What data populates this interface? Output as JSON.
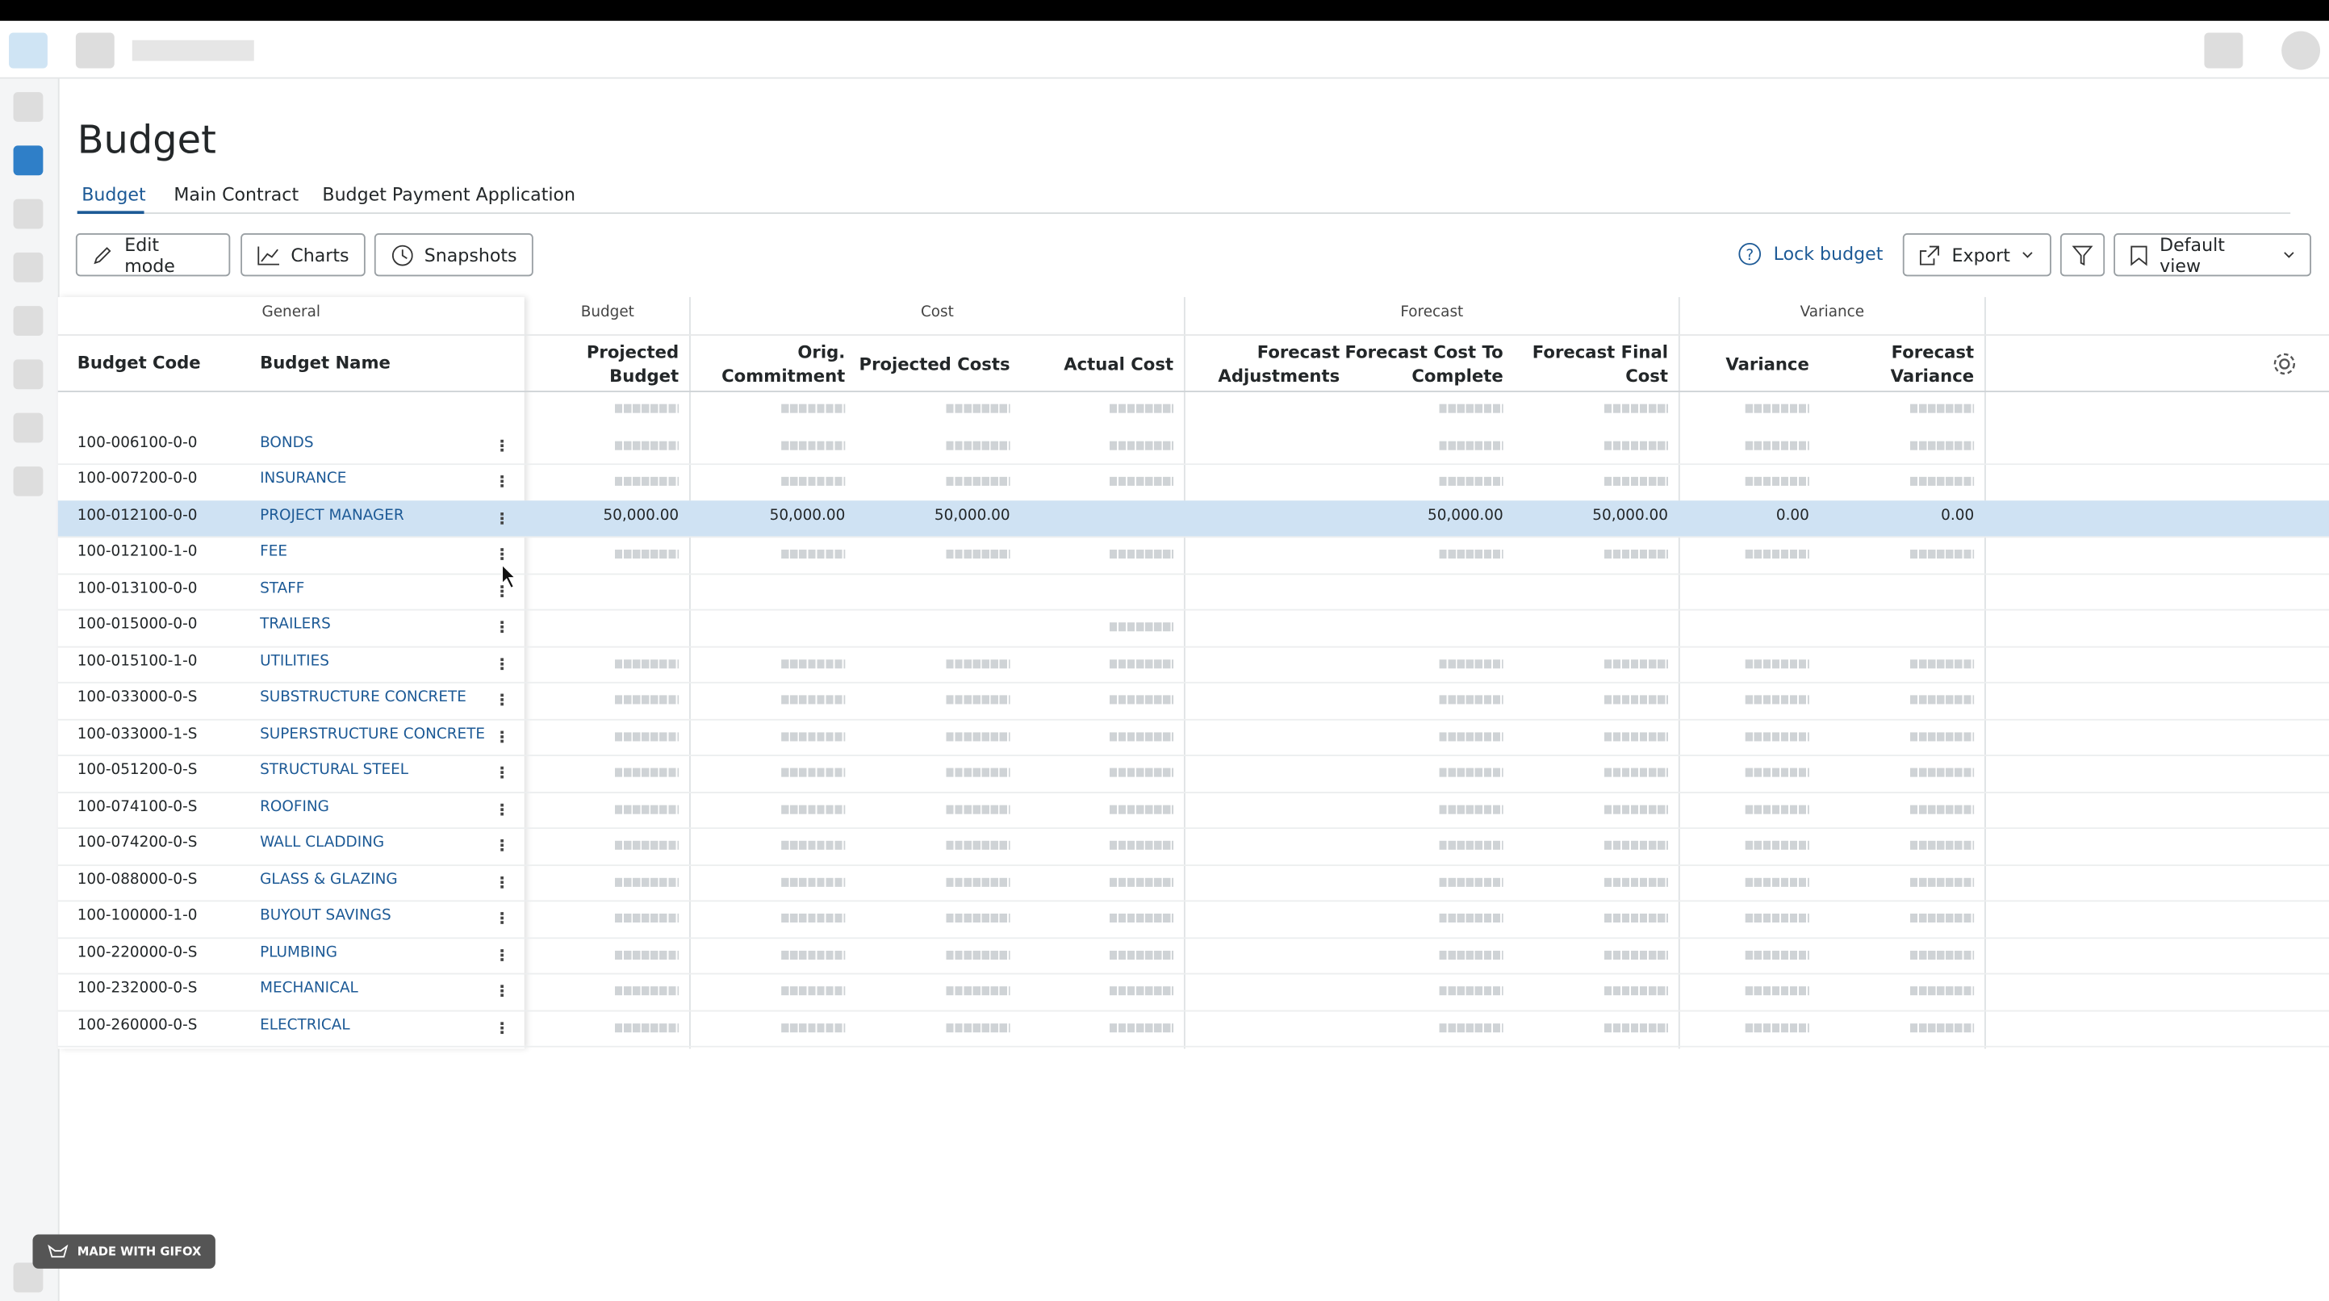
{
  "header": {
    "title": "Budget",
    "tabs": [
      "Budget",
      "Main Contract",
      "Budget Payment Application"
    ]
  },
  "toolbar": {
    "left": [
      "Edit mode",
      "Charts",
      "Snapshots"
    ],
    "lock": "Lock budget",
    "export": "Export",
    "view": "Default view"
  },
  "table": {
    "groups": [
      "General",
      "Budget",
      "Cost",
      "Forecast",
      "Variance"
    ],
    "columns": [
      "Budget Code",
      "Budget Name",
      "Projected Budget",
      "Orig. Commitment",
      "Projected Costs",
      "Actual Cost",
      "Forecast Adjustments",
      "Forecast Cost To Complete",
      "Forecast Final Cost",
      "Variance",
      "Forecast Variance"
    ],
    "rows": [
      {
        "code": "100-006100-0-0",
        "name": "BONDS"
      },
      {
        "code": "100-007200-0-0",
        "name": "INSURANCE"
      },
      {
        "code": "100-012100-0-0",
        "name": "PROJECT MANAGER",
        "values": [
          "50,000.00",
          "50,000.00",
          "50,000.00",
          null,
          null,
          "50,000.00",
          "50,000.00",
          "0.00",
          "0.00"
        ]
      },
      {
        "code": "100-012100-1-0",
        "name": "FEE"
      },
      {
        "code": "100-013100-0-0",
        "name": "STAFF"
      },
      {
        "code": "100-015000-0-0",
        "name": "TRAILERS"
      },
      {
        "code": "100-015100-1-0",
        "name": "UTILITIES"
      },
      {
        "code": "100-033000-0-S",
        "name": "SUBSTRUCTURE CONCRETE"
      },
      {
        "code": "100-033000-1-S",
        "name": "SUPERSTRUCTURE CONCRETE"
      },
      {
        "code": "100-051200-0-S",
        "name": "STRUCTURAL STEEL"
      },
      {
        "code": "100-074100-0-S",
        "name": "ROOFING"
      },
      {
        "code": "100-074200-0-S",
        "name": "WALL CLADDING"
      },
      {
        "code": "100-088000-0-S",
        "name": "GLASS & GLAZING"
      },
      {
        "code": "100-100000-1-0",
        "name": "BUYOUT SAVINGS"
      },
      {
        "code": "100-220000-0-S",
        "name": "PLUMBING"
      },
      {
        "code": "100-232000-0-S",
        "name": "MECHANICAL"
      },
      {
        "code": "100-260000-0-S",
        "name": "ELECTRICAL"
      }
    ]
  },
  "badge": "MADE WITH GIFOX"
}
